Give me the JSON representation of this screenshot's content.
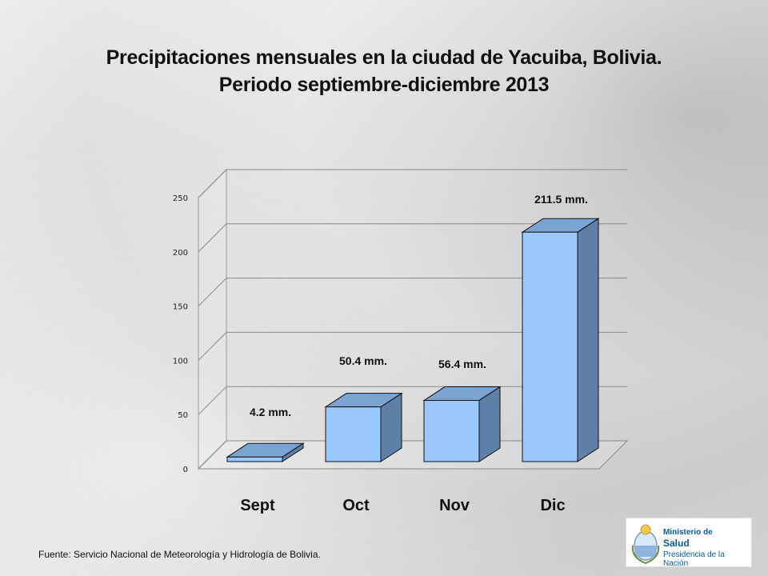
{
  "title_line1": "Precipitaciones mensuales en la ciudad de Yacuiba, Bolivia.",
  "title_line2": "Periodo septiembre-diciembre 2013",
  "footer": "Fuente: Servicio Nacional de Meteorología y Hidrología de Bolivia.",
  "logo": {
    "line1": "Ministerio de",
    "line2": "Salud",
    "line3": "Presidencia de la Nación"
  },
  "colors": {
    "bar_front": "#99c9ff",
    "bar_top": "#7ba3d4",
    "bar_side": "#5f7fa6"
  },
  "chart_data": {
    "type": "bar",
    "categories": [
      "Sept",
      "Oct",
      "Nov",
      "Dic"
    ],
    "values": [
      4.2,
      50.4,
      56.4,
      211.5
    ],
    "data_labels": [
      "4.2 mm.",
      "50.4 mm.",
      "56.4 mm.",
      "211.5 mm."
    ],
    "yticks": [
      "0",
      "50",
      "100",
      "150",
      "200",
      "250"
    ],
    "ylim": [
      0,
      250
    ],
    "grid": true,
    "legend": "none"
  }
}
